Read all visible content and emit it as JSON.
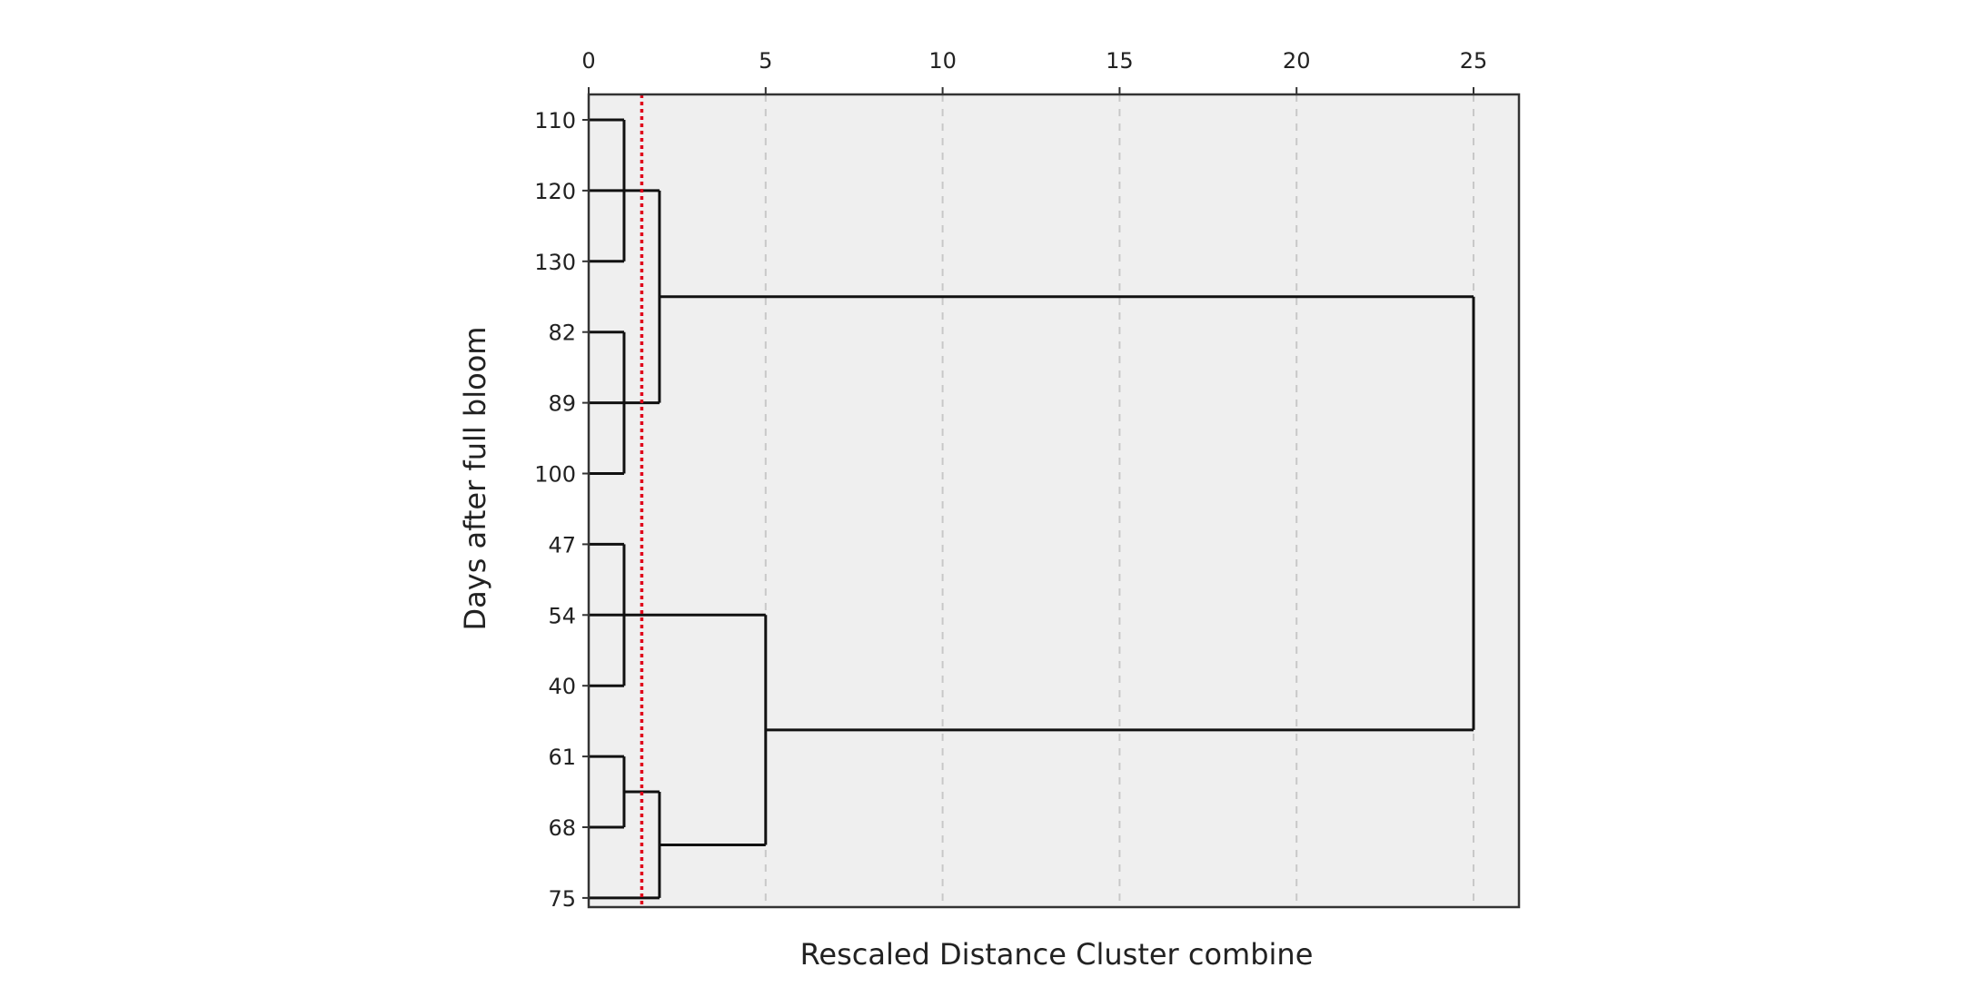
{
  "chart_data": {
    "type": "dendrogram",
    "orientation": "horizontal",
    "title": "",
    "xlabel": "Rescaled Distance Cluster combine",
    "ylabel": "Days after full bloom",
    "xlim": [
      0,
      26.3
    ],
    "x_ticks": [
      0,
      5,
      10,
      15,
      20,
      25
    ],
    "x_tick_labels": [
      "0",
      "5",
      "10",
      "15",
      "20",
      "25"
    ],
    "leaf_order": [
      "110",
      "120",
      "130",
      "82",
      "89",
      "100",
      "47",
      "54",
      "40",
      "61",
      "68",
      "75"
    ],
    "merges": [
      {
        "children": [
          "110",
          "120",
          "130"
        ],
        "distance": 1
      },
      {
        "children": [
          "82",
          "89",
          "100"
        ],
        "distance": 1
      },
      {
        "children": [
          "47",
          "54",
          "40"
        ],
        "distance": 1
      },
      {
        "children": [
          "61",
          "68"
        ],
        "distance": 1
      },
      {
        "children": [
          "110-120-130",
          "82-89-100"
        ],
        "distance": 2
      },
      {
        "children": [
          "61-68",
          "75"
        ],
        "distance": 2
      },
      {
        "children": [
          "47-54-40",
          "61-68-75"
        ],
        "distance": 5
      },
      {
        "children": [
          "110…100",
          "47…75"
        ],
        "distance": 25
      }
    ],
    "cutoff_line": {
      "distance": 1.5,
      "color": "#e0001b",
      "style": "dotted"
    },
    "grid": {
      "x": true,
      "style": "dashed",
      "color": "#c8c8c8"
    },
    "colors": {
      "plot_background": "#efefef",
      "frame": "#333333",
      "links": "#111111"
    }
  }
}
